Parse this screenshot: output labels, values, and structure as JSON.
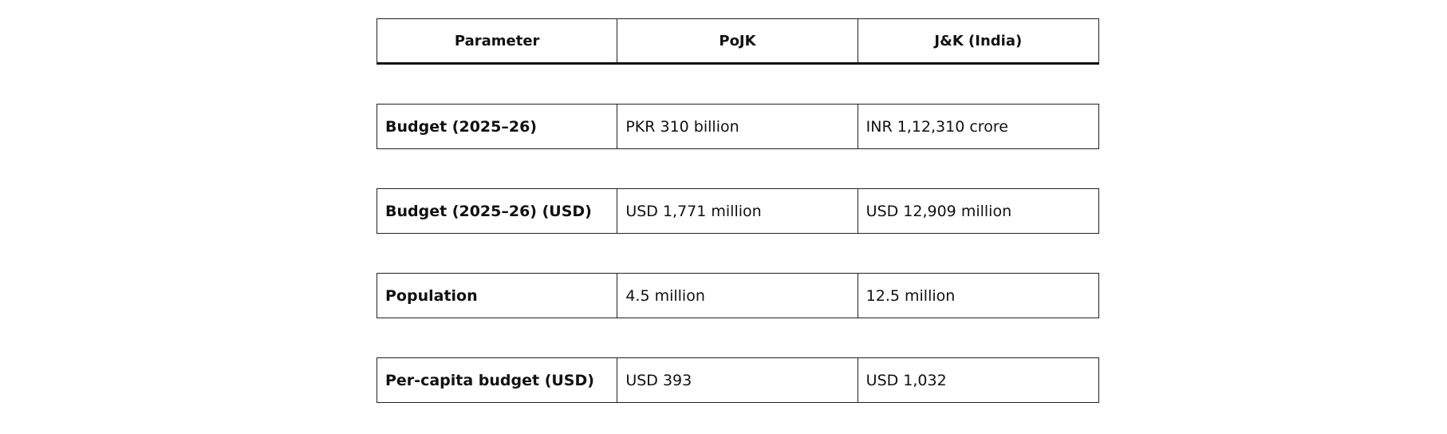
{
  "table": {
    "headers": [
      "Parameter",
      "PoJK",
      "J&K (India)"
    ],
    "rows": [
      {
        "parameter": "Budget (2025–26)",
        "pojk": "PKR 310 billion",
        "jk": "INR 1,12,310 crore"
      },
      {
        "parameter": "Budget (2025–26) (USD)",
        "pojk": "USD 1,771 million",
        "jk": "USD 12,909 million"
      },
      {
        "parameter": "Population",
        "pojk": "4.5 million",
        "jk": "12.5 million"
      },
      {
        "parameter": "Per-capita budget (USD)",
        "pojk": "USD 393",
        "jk": "USD 1,032"
      }
    ]
  }
}
